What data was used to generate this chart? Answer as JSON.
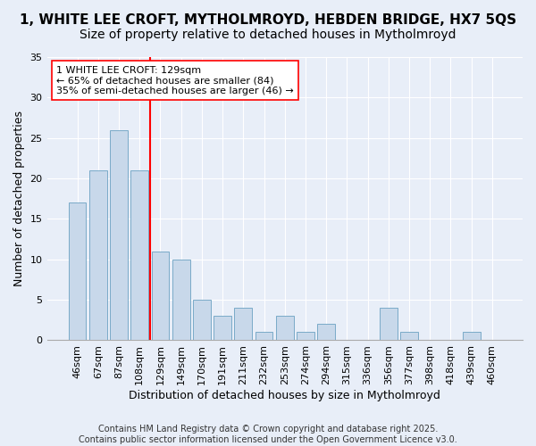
{
  "title": "1, WHITE LEE CROFT, MYTHOLMROYD, HEBDEN BRIDGE, HX7 5QS",
  "subtitle": "Size of property relative to detached houses in Mytholmroyd",
  "xlabel": "Distribution of detached houses by size in Mytholmroyd",
  "ylabel": "Number of detached properties",
  "categories": [
    "46sqm",
    "67sqm",
    "87sqm",
    "108sqm",
    "129sqm",
    "149sqm",
    "170sqm",
    "191sqm",
    "211sqm",
    "232sqm",
    "253sqm",
    "274sqm",
    "294sqm",
    "315sqm",
    "336sqm",
    "356sqm",
    "377sqm",
    "398sqm",
    "418sqm",
    "439sqm",
    "460sqm"
  ],
  "values": [
    17,
    21,
    26,
    21,
    11,
    10,
    5,
    3,
    4,
    1,
    3,
    1,
    2,
    0,
    0,
    4,
    1,
    0,
    0,
    1,
    0
  ],
  "bar_color": "#c8d8ea",
  "bar_edge_color": "#7aaac8",
  "vline_color": "red",
  "annotation_text": "1 WHITE LEE CROFT: 129sqm\n← 65% of detached houses are smaller (84)\n35% of semi-detached houses are larger (46) →",
  "annotation_box_color": "white",
  "annotation_box_edge_color": "red",
  "ylim": [
    0,
    35
  ],
  "yticks": [
    0,
    5,
    10,
    15,
    20,
    25,
    30,
    35
  ],
  "footer_text": "Contains HM Land Registry data © Crown copyright and database right 2025.\nContains public sector information licensed under the Open Government Licence v3.0.",
  "background_color": "#e8eef8",
  "plot_background_color": "#e8eef8",
  "title_fontsize": 11,
  "axis_label_fontsize": 9,
  "tick_fontsize": 8,
  "annotation_fontsize": 8,
  "footer_fontsize": 7
}
